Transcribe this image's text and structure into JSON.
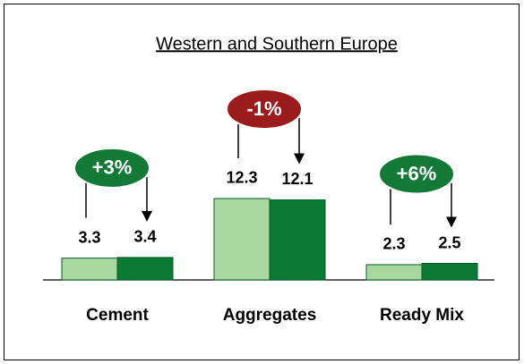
{
  "chart_data": {
    "type": "bar",
    "title": "Western and Southern Europe",
    "categories": [
      "Cement",
      "Aggregates",
      "Ready Mix"
    ],
    "series": [
      {
        "color": "#a8d8a0",
        "values": [
          3.3,
          12.3,
          2.3
        ]
      },
      {
        "color": "#0b7a35",
        "values": [
          3.4,
          12.1,
          2.5
        ]
      }
    ],
    "annotations": [
      "+3%",
      "-1%",
      "+6%"
    ],
    "annotation_colors": [
      "#127a36",
      "#9a1c1c",
      "#127a36"
    ],
    "ylim": [
      0,
      20
    ]
  }
}
